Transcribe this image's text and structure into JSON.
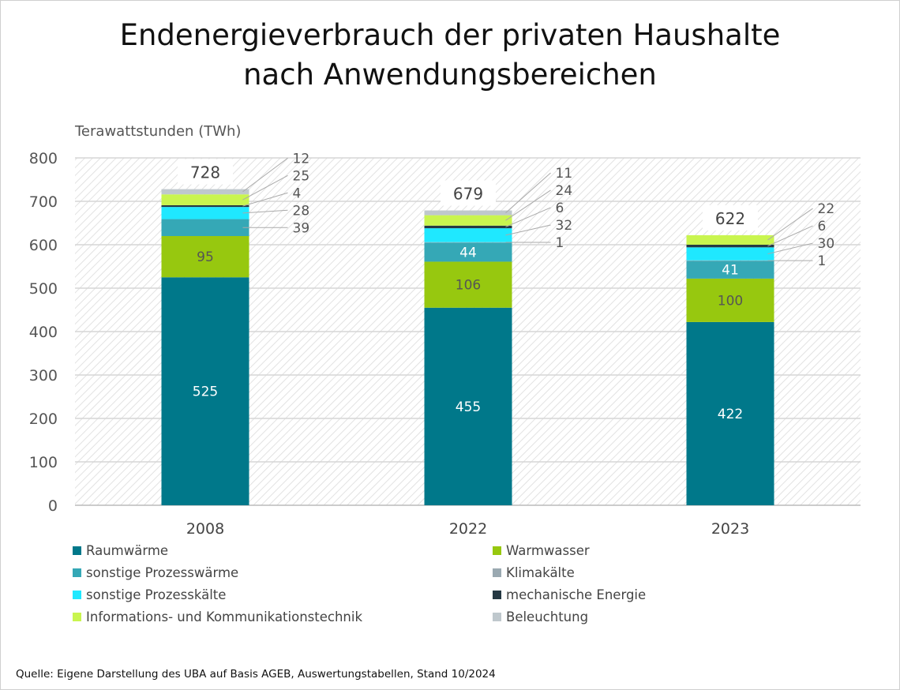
{
  "chart_data": {
    "type": "bar",
    "stacked": true,
    "title": [
      "Endenergieverbrauch der privaten Haushalte",
      "nach Anwendungsbereichen"
    ],
    "ylabel": "Terawattstunden (TWh)",
    "ylim": [
      0,
      800
    ],
    "yticks": [
      0,
      100,
      200,
      300,
      400,
      500,
      600,
      700,
      800
    ],
    "grid": true,
    "legend_position": "bottom",
    "categories": [
      "2008",
      "2022",
      "2023"
    ],
    "totals": [
      728,
      679,
      622
    ],
    "series": [
      {
        "name": "Raumwärme",
        "color": "#00788a",
        "values": [
          525,
          455,
          422
        ]
      },
      {
        "name": "Warmwasser",
        "color": "#97c80f",
        "values": [
          95,
          106,
          100
        ]
      },
      {
        "name": "sonstige Prozesswärme",
        "color": "#35a8b6",
        "values": [
          39,
          44,
          41
        ]
      },
      {
        "name": "Klimakälte",
        "color": "#9aa9b1",
        "values": [
          0,
          1,
          1
        ]
      },
      {
        "name": "sonstige Prozesskälte",
        "color": "#1fe8ff",
        "values": [
          28,
          32,
          30
        ]
      },
      {
        "name": "mechanische Energie",
        "color": "#253843",
        "values": [
          4,
          6,
          6
        ]
      },
      {
        "name": "Informations- und Kommunikationstechnik",
        "color": "#c9f54f",
        "values": [
          25,
          24,
          22
        ]
      },
      {
        "name": "Beleuchtung",
        "color": "#bfc8cd",
        "values": [
          12,
          11,
          0
        ]
      }
    ]
  },
  "source": "Quelle: Eigene Darstellung des UBA auf Basis AGEB, Auswertungstabellen, Stand 10/2024"
}
